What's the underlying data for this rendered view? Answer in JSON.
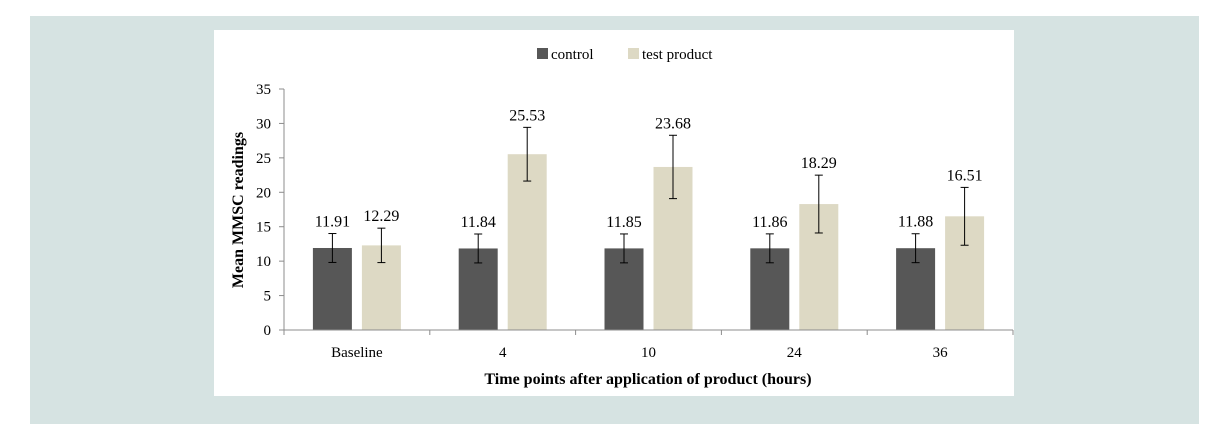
{
  "chart_data": {
    "type": "bar",
    "title": "",
    "xlabel": "Time points after application of product (hours)",
    "ylabel": "Mean MMSC readings",
    "ylim": [
      0,
      35
    ],
    "yticks": [
      0,
      5,
      10,
      15,
      20,
      25,
      30,
      35
    ],
    "grid": false,
    "legend_position": "top-center",
    "categories": [
      "Baseline",
      "4",
      "10",
      "24",
      "36"
    ],
    "series": [
      {
        "name": "control",
        "color": "#575757",
        "values": [
          11.91,
          11.84,
          11.85,
          11.86,
          11.88
        ],
        "value_labels": [
          "11.91",
          "11.84",
          "11.85",
          "11.86",
          "11.88"
        ],
        "error": [
          2.1,
          2.1,
          2.1,
          2.1,
          2.1
        ]
      },
      {
        "name": "test product",
        "color": "#ddd9c4",
        "values": [
          12.29,
          25.53,
          23.68,
          18.29,
          16.51
        ],
        "value_labels": [
          "12.29",
          "25.53",
          "23.68",
          "18.29",
          "16.51"
        ],
        "error": [
          2.5,
          3.9,
          4.6,
          4.2,
          4.2
        ]
      }
    ]
  }
}
